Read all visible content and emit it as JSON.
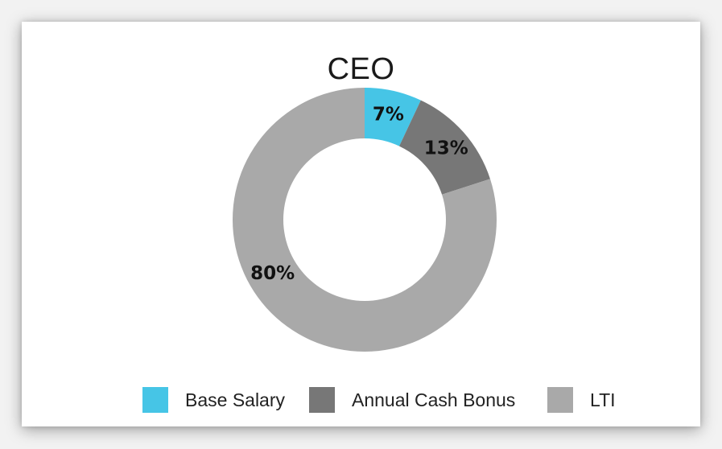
{
  "chart_data": {
    "type": "pie",
    "title": "CEO",
    "donut": true,
    "categories": [
      "Base Salary",
      "Annual Cash Bonus",
      "LTI"
    ],
    "values": [
      7,
      13,
      80
    ],
    "labels": [
      "7%",
      "13%",
      "80%"
    ],
    "colors": [
      "#46c5e6",
      "#777777",
      "#a9a9a9"
    ],
    "legend_position": "bottom"
  }
}
